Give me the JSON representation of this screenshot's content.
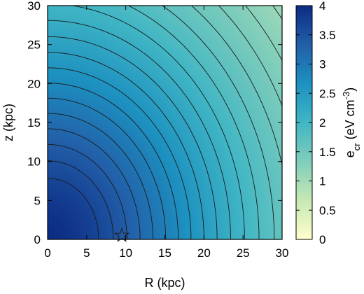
{
  "chart_data": {
    "type": "heatmap",
    "title": "",
    "xlabel": "R (kpc)",
    "ylabel": "z (kpc)",
    "xlim": [
      0,
      30
    ],
    "ylim": [
      0,
      30
    ],
    "x_ticks": [
      "0",
      "5",
      "10",
      "15",
      "20",
      "25",
      "30"
    ],
    "y_ticks": [
      "0",
      "5",
      "10",
      "15",
      "20",
      "25",
      "30"
    ],
    "colorbar": {
      "label_main": "e",
      "label_sub": "cr",
      "label_unit": " (eV cm",
      "label_exp": "-3",
      "label_close": ")",
      "range": [
        0,
        4
      ],
      "ticks": [
        "0",
        "0.5",
        "1",
        "1.5",
        "2",
        "2.5",
        "3",
        "3.5",
        "4"
      ],
      "colors": [
        "#ffffcc",
        "#c7e9b4",
        "#7fcdbb",
        "#41b6c4",
        "#1d91c0",
        "#225ea8",
        "#0c2c84"
      ]
    },
    "field": {
      "center": [
        0,
        0
      ],
      "peak_value": 4.0,
      "edge_value_far_corner": 1.05
    },
    "contour_levels": [
      1.1,
      1.25,
      1.4,
      1.55,
      1.7,
      1.85,
      2.0,
      2.15,
      2.3,
      2.45,
      2.6,
      2.75,
      2.9,
      3.05,
      3.2,
      3.35,
      3.5,
      3.65
    ],
    "markers": [
      {
        "name": "Sun",
        "symbol": "star",
        "R": 9.5,
        "z": 0.5
      }
    ],
    "grid": false
  }
}
